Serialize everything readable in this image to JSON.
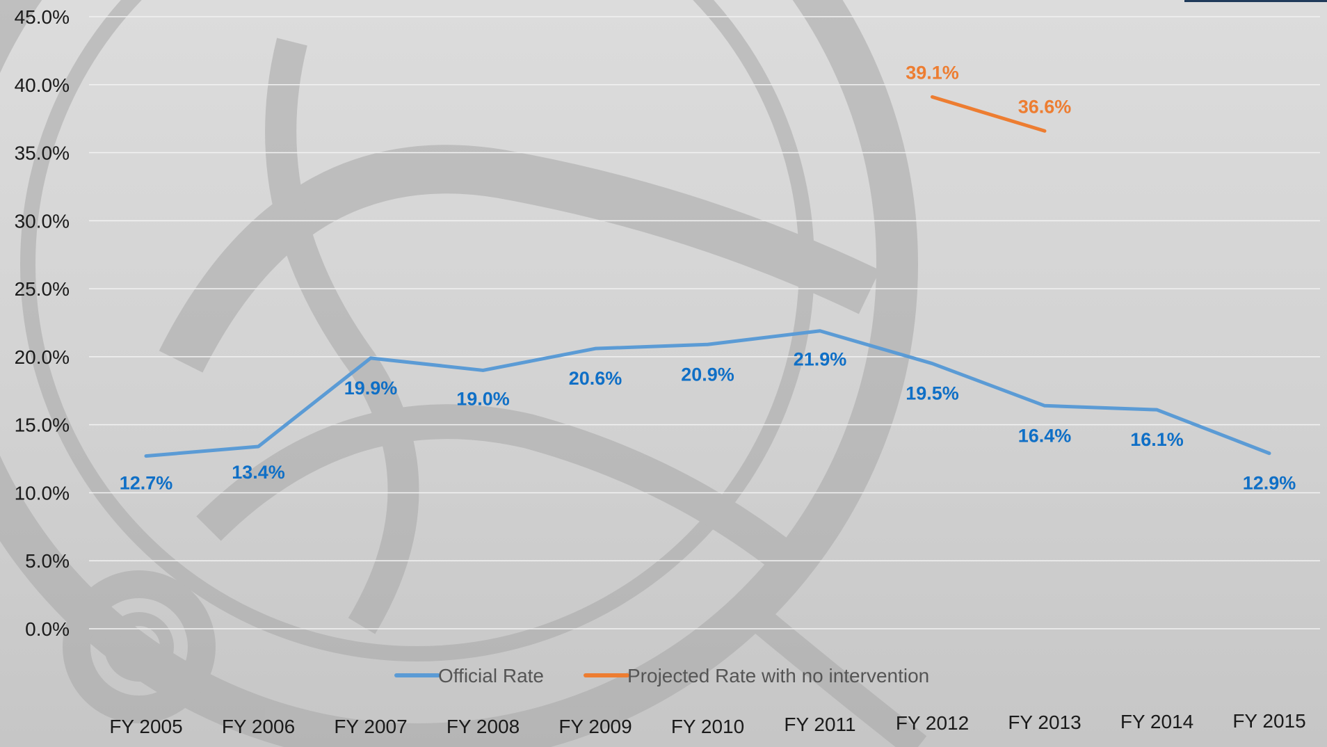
{
  "chart_data": {
    "type": "line",
    "categories": [
      "FY 2005",
      "FY 2006",
      "FY 2007",
      "FY 2008",
      "FY 2009",
      "FY 2010",
      "FY 2011",
      "FY 2012",
      "FY 2013",
      "FY 2014",
      "FY 2015"
    ],
    "series": [
      {
        "name": "Official Rate",
        "color": "#5b9bd5",
        "label_color": "#0f6fc6",
        "values": [
          12.7,
          13.4,
          19.9,
          19.0,
          20.6,
          20.9,
          21.9,
          19.5,
          16.4,
          16.1,
          12.9
        ],
        "labels": [
          "12.7%",
          "13.4%",
          "19.9%",
          "19.0%",
          "20.6%",
          "20.9%",
          "21.9%",
          "19.5%",
          "16.4%",
          "16.1%",
          "12.9%"
        ]
      },
      {
        "name": "Projected Rate with no intervention",
        "color": "#ed7d31",
        "label_color": "#ed7d31",
        "values": [
          null,
          null,
          null,
          null,
          null,
          null,
          null,
          39.1,
          36.6,
          null,
          null
        ],
        "labels": [
          null,
          null,
          null,
          null,
          null,
          null,
          null,
          "39.1%",
          "36.6%",
          null,
          null
        ]
      }
    ],
    "y_ticks": [
      "0.0%",
      "5.0%",
      "10.0%",
      "15.0%",
      "20.0%",
      "25.0%",
      "30.0%",
      "35.0%",
      "40.0%",
      "45.0%"
    ],
    "ylim": [
      0,
      45
    ],
    "grid": true,
    "legend_position": "bottom"
  },
  "colors": {
    "gridline": "#f2f2f2",
    "accent_bar": "#1f3a5a"
  }
}
